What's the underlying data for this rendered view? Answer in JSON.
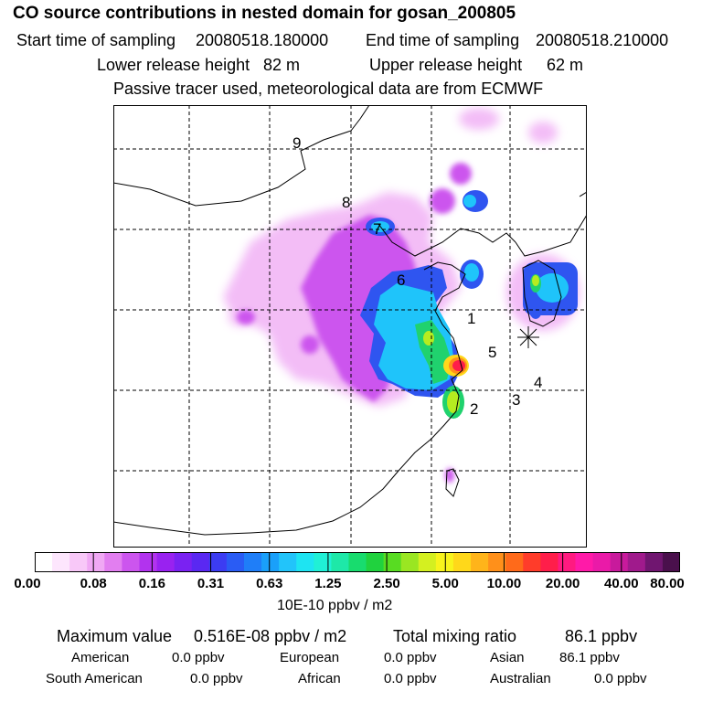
{
  "header": {
    "title": "CO  source contributions in nested domain for gosan_200805",
    "start_label": "Start time of sampling",
    "start_value": "20080518.180000",
    "end_label": "End time of sampling",
    "end_value": "20080518.210000",
    "lower_label": "Lower release height",
    "lower_value": "82 m",
    "upper_label": "Upper release height",
    "upper_value": "62 m",
    "note": "Passive tracer used, meteorological data are from ECMWF"
  },
  "map": {
    "point_labels": [
      "1",
      "2",
      "3",
      "4",
      "5",
      "6",
      "7",
      "8",
      "9"
    ],
    "receptor": "gosan"
  },
  "colorbar": {
    "tick_labels": [
      "0.00",
      "0.08",
      "0.16",
      "0.31",
      "0.63",
      "1.25",
      "2.50",
      "5.00",
      "10.00",
      "20.00",
      "40.00",
      "80.00"
    ],
    "units": "10E-10 ppbv / m2",
    "colors": [
      "#ffffff",
      "#fde6fd",
      "#f8c8f8",
      "#f0a8f4",
      "#e27ef0",
      "#cc55ee",
      "#b233ee",
      "#9922f0",
      "#7a22f2",
      "#5a28f2",
      "#3c3cf2",
      "#2a5cf4",
      "#1f7ef8",
      "#1aa0fa",
      "#22c4fa",
      "#1ee4f2",
      "#20f0d6",
      "#1ee8a8",
      "#18dc6e",
      "#20d23e",
      "#58dc22",
      "#9ae622",
      "#d4f020",
      "#f8f41c",
      "#ffd81a",
      "#ffb41a",
      "#ff901a",
      "#ff6a1a",
      "#ff3c2a",
      "#ff1e4a",
      "#ff1a80",
      "#ff1aa8",
      "#ea1aa8",
      "#c81a9c",
      "#a01a8c",
      "#701670",
      "#4a104c"
    ]
  },
  "stats": {
    "max_label": "Maximum value",
    "max_value": "0.516E-08 ppbv / m2",
    "total_label": "Total mixing ratio",
    "total_value": "86.1 ppbv",
    "american_label": "American",
    "american_value": "0.0 ppbv",
    "european_label": "European",
    "european_value": "0.0 ppbv",
    "asian_label": "Asian",
    "asian_value": "86.1 ppbv",
    "south_american_label": "South American",
    "south_american_value": "0.0 ppbv",
    "african_label": "African",
    "african_value": "0.0 ppbv",
    "australian_label": "Australian",
    "australian_value": "0.0 ppbv"
  }
}
